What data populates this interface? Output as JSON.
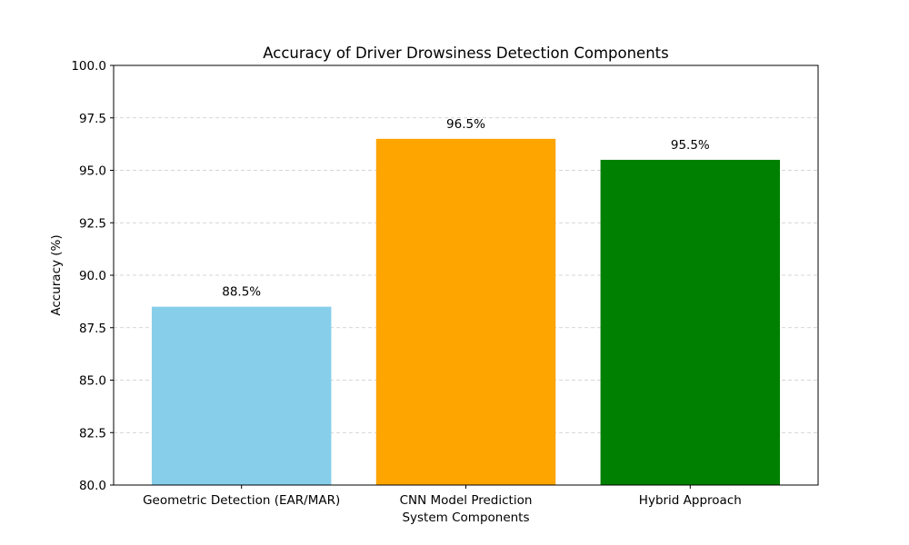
{
  "chart_data": {
    "type": "bar",
    "title": "Accuracy of Driver Drowsiness Detection Components",
    "xlabel": "System Components",
    "ylabel": "Accuracy (%)",
    "categories": [
      "Geometric Detection (EAR/MAR)",
      "CNN Model Prediction",
      "Hybrid Approach"
    ],
    "values": [
      88.5,
      96.5,
      95.5
    ],
    "value_labels": [
      "88.5%",
      "96.5%",
      "95.5%"
    ],
    "colors": [
      "#87ceeb",
      "#ffa500",
      "#008000"
    ],
    "ylim": [
      80,
      100
    ],
    "yticks": [
      80.0,
      82.5,
      85.0,
      87.5,
      90.0,
      92.5,
      95.0,
      97.5,
      100.0
    ],
    "ytick_labels": [
      "80.0",
      "82.5",
      "85.0",
      "87.5",
      "90.0",
      "92.5",
      "95.0",
      "97.5",
      "100.0"
    ],
    "grid": "y-dashed",
    "legend": "none"
  }
}
